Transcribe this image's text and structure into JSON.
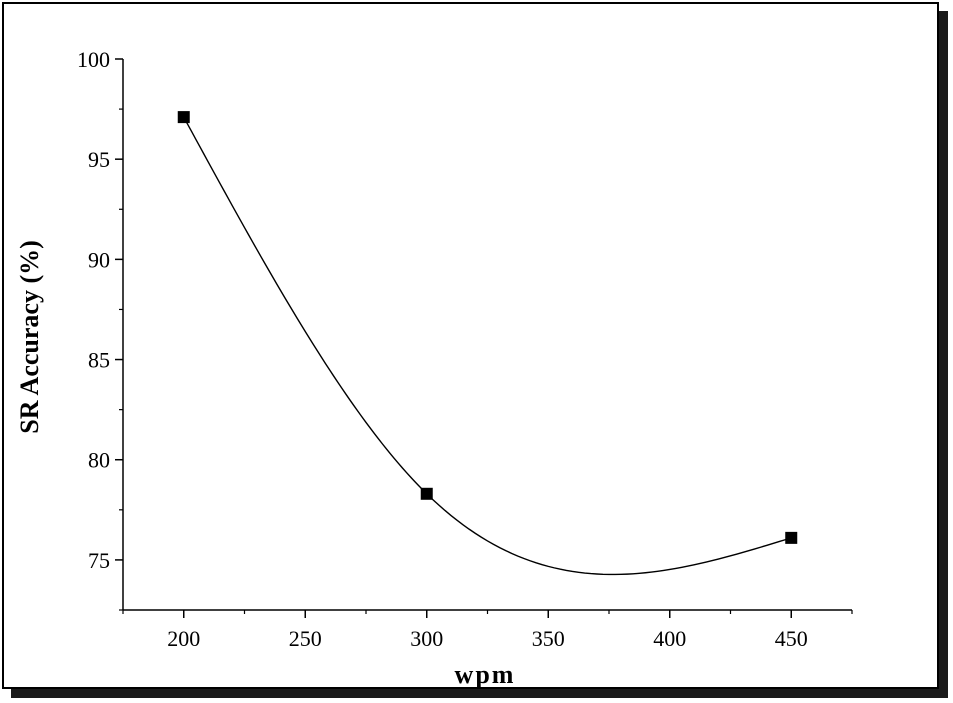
{
  "chart_data": {
    "type": "line",
    "title": "",
    "xlabel": "wpm",
    "ylabel": "SR Accuracy (%)",
    "xlim": [
      175,
      475
    ],
    "ylim": [
      72.5,
      100
    ],
    "xticks": [
      200,
      250,
      300,
      350,
      400,
      450
    ],
    "yticks": [
      75,
      80,
      85,
      90,
      95,
      100
    ],
    "grid": false,
    "legend": "none",
    "series": [
      {
        "marker": "square",
        "line": "smooth",
        "x": [
          200,
          300,
          450
        ],
        "y": [
          97.1,
          78.3,
          76.1
        ]
      }
    ],
    "colors": {
      "line": "#000000",
      "marker": "#000000",
      "axis": "#000000"
    }
  }
}
